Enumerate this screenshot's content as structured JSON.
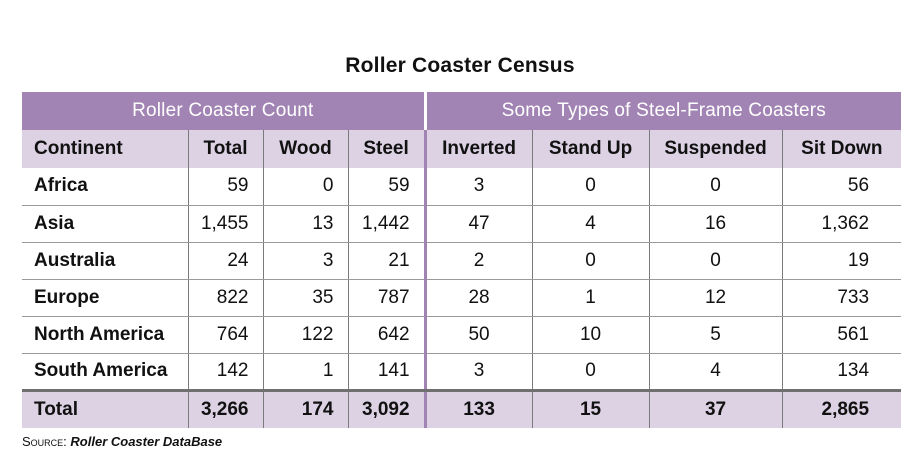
{
  "title": "Roller Coaster Census",
  "group_headers": [
    "Roller Coaster Count",
    "Some Types of Steel-Frame Coasters"
  ],
  "columns": [
    "Continent",
    "Total",
    "Wood",
    "Steel",
    "Inverted",
    "Stand Up",
    "Suspended",
    "Sit Down"
  ],
  "rows": [
    [
      "Africa",
      "59",
      "0",
      "59",
      "3",
      "0",
      "0",
      "56"
    ],
    [
      "Asia",
      "1,455",
      "13",
      "1,442",
      "47",
      "4",
      "16",
      "1,362"
    ],
    [
      "Australia",
      "24",
      "3",
      "21",
      "2",
      "0",
      "0",
      "19"
    ],
    [
      "Europe",
      "822",
      "35",
      "787",
      "28",
      "1",
      "12",
      "733"
    ],
    [
      "North America",
      "764",
      "122",
      "642",
      "50",
      "10",
      "5",
      "561"
    ],
    [
      "South America",
      "142",
      "1",
      "141",
      "3",
      "0",
      "4",
      "134"
    ]
  ],
  "total_row": [
    "Total",
    "3,266",
    "174",
    "3,092",
    "133",
    "15",
    "37",
    "2,865"
  ],
  "source": {
    "label": "Source:",
    "name": "Roller Coaster DataBase"
  },
  "colors": {
    "header_purple": "#a184b3",
    "light_purple": "#dcd2e4"
  }
}
